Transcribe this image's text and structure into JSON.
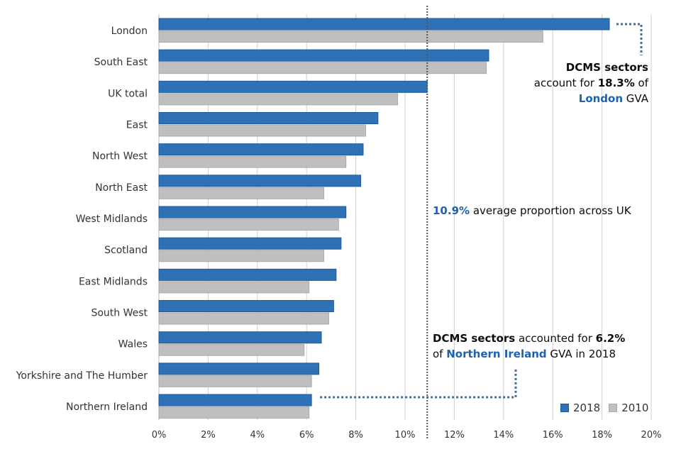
{
  "chart_data": {
    "type": "bar",
    "orientation": "horizontal",
    "categories": [
      "London",
      "South East",
      "UK total",
      "East",
      "North West",
      "North East",
      "West Midlands",
      "Scotland",
      "East Midlands",
      "South West",
      "Wales",
      "Yorkshire and The Humber",
      "Northern Ireland"
    ],
    "series": [
      {
        "name": "2018",
        "color": "#2e72b5",
        "values": [
          18.3,
          13.4,
          10.9,
          8.9,
          8.3,
          8.2,
          7.6,
          7.4,
          7.2,
          7.1,
          6.6,
          6.5,
          6.2
        ]
      },
      {
        "name": "2010",
        "color": "#bfbfbf",
        "values": [
          15.6,
          13.3,
          9.7,
          8.4,
          7.6,
          6.7,
          7.3,
          6.7,
          6.1,
          6.9,
          5.9,
          6.2,
          6.1
        ]
      }
    ],
    "xlim": [
      0,
      20
    ],
    "xticks": [
      "0%",
      "2%",
      "4%",
      "6%",
      "8%",
      "10%",
      "12%",
      "14%",
      "16%",
      "18%",
      "20%"
    ],
    "reference_line": 10.9,
    "grid": true,
    "legend_position": "bottom-right",
    "annotations": {
      "london": {
        "l1": "DCMS sectors",
        "l2a": "account for ",
        "l2b": "18.3%",
        "l2c": " of",
        "l3a": "London",
        "l3b": " GVA"
      },
      "average": {
        "a": "10.9%",
        "b": " average proportion across UK"
      },
      "ni": {
        "l1a": "DCMS sectors",
        "l1b": " accounted for ",
        "l1c": "6.2%",
        "l2a": "of ",
        "l2b": "Northern Ireland",
        "l2c": " GVA in 2018"
      }
    }
  }
}
